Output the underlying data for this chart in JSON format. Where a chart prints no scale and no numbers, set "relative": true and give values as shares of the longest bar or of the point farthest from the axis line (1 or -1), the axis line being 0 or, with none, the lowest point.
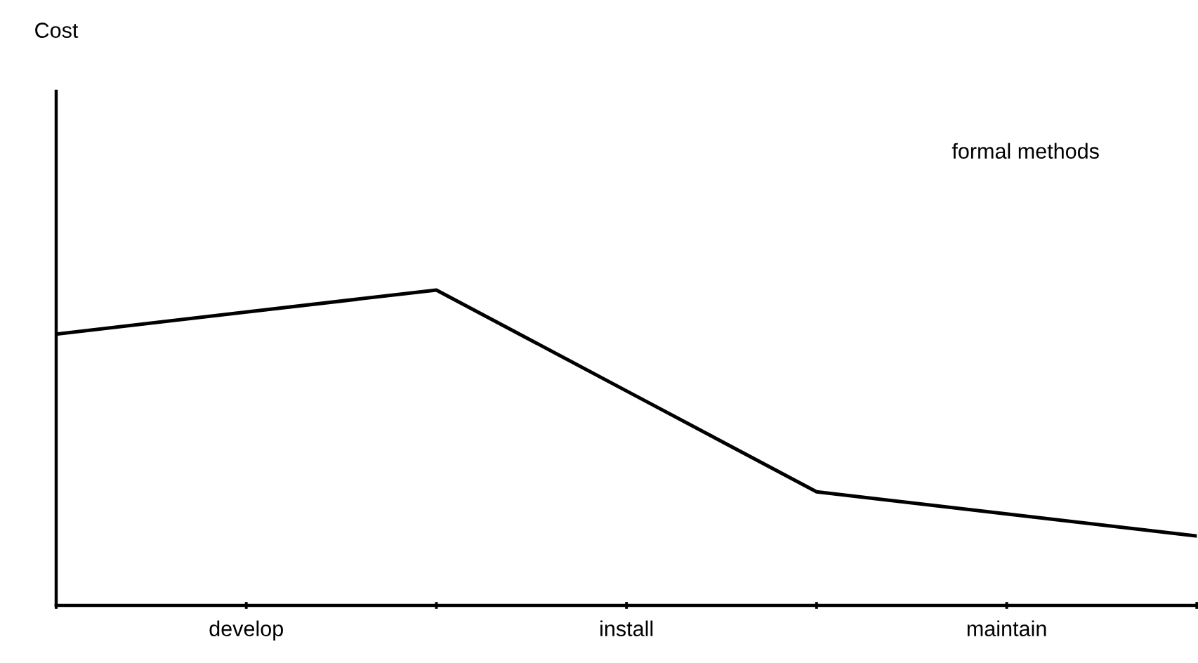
{
  "chart_data": {
    "type": "line",
    "relative": true,
    "categories": [
      null,
      "develop",
      null,
      "install",
      null,
      "maintain",
      null
    ],
    "series": [
      {
        "color": "#000000",
        "values": [
          0.86,
          0.93,
          1,
          0.68,
          0.36,
          0.29,
          0.22
        ]
      }
    ],
    "annotations": [
      "Cost",
      "formal methods"
    ],
    "marker": "none",
    "line_style": "solid"
  }
}
